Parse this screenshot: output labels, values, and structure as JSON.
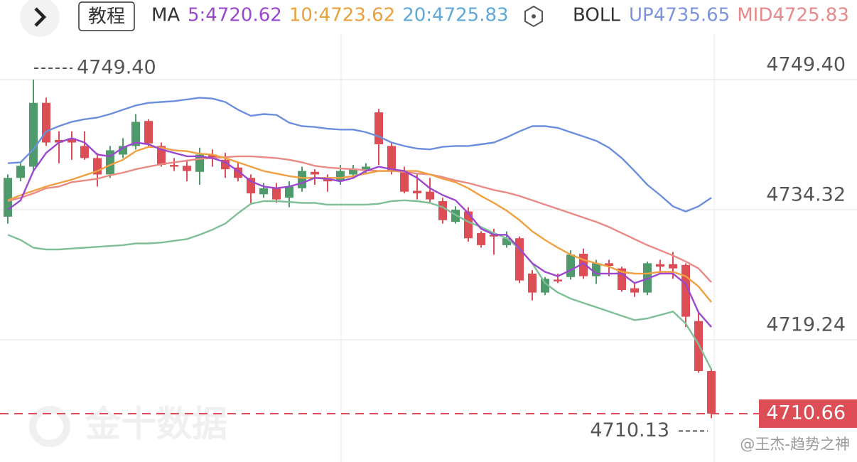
{
  "chart_data": {
    "type": "candlestick",
    "header": {
      "tutorial": "教程",
      "ma_label": "MA",
      "ma": [
        {
          "text": "5:4720.62",
          "color": "#9b47d0"
        },
        {
          "text": "10:4723.62",
          "color": "#e8a13e"
        },
        {
          "text": "20:4725.83",
          "color": "#5fa8d8"
        }
      ],
      "boll_label": "BOLL",
      "boll": [
        {
          "text": "UP4735.65",
          "color": "#7b93dc"
        },
        {
          "text": "MID4725.83",
          "color": "#e8888a"
        }
      ]
    },
    "up_color": "#4f9a6a",
    "down_color": "#dc4d55",
    "open": [
      4733.5,
      4738.0,
      4739.3,
      4746.7,
      4742.4,
      4742.6,
      4741.7,
      4740.3,
      4738.4,
      4740.7,
      4741.7,
      4744.6,
      4741.7,
      4739.5,
      4739.4,
      4738.7,
      4740.7,
      4740.1,
      4739.2,
      4738.0,
      4736.1,
      4736.8,
      4735.7,
      4736.8,
      4738.7,
      4738.0,
      4737.6,
      4738.4,
      4738.8,
      4745.6,
      4741.7,
      4738.8,
      4736.5,
      4736.4,
      4735.3,
      4732.9,
      4734.1,
      4731.6,
      4731.4,
      4730.2,
      4731.0,
      4726.9,
      4724.7,
      4726.2,
      4726.5,
      4729.2,
      4726.6,
      4728.1,
      4727.5,
      4725.2,
      4724.7,
      4728.0,
      4728.0,
      4727.9,
      4721.4,
      4715.6
    ],
    "high": [
      4738.4,
      4739.7,
      4749.4,
      4747.3,
      4743.4,
      4743.4,
      4743.4,
      4740.9,
      4741.7,
      4742.6,
      4745.4,
      4744.8,
      4742.1,
      4740.3,
      4740.1,
      4741.5,
      4741.3,
      4740.9,
      4739.8,
      4738.4,
      4737.4,
      4737.4,
      4737.6,
      4739.3,
      4739.0,
      4738.4,
      4739.5,
      4739.5,
      4739.7,
      4746.0,
      4742.1,
      4739.3,
      4738.4,
      4738.0,
      4735.7,
      4734.7,
      4734.6,
      4731.8,
      4732.1,
      4731.8,
      4731.2,
      4727.3,
      4726.5,
      4726.9,
      4729.6,
      4729.8,
      4728.5,
      4728.5,
      4727.7,
      4725.7,
      4728.3,
      4728.5,
      4729.4,
      4728.1,
      4722.4,
      4715.9
    ],
    "low": [
      4732.7,
      4737.6,
      4738.8,
      4741.7,
      4739.7,
      4740.1,
      4740.1,
      4737.0,
      4738.0,
      4740.3,
      4741.3,
      4741.7,
      4739.3,
      4738.8,
      4737.6,
      4737.2,
      4739.3,
      4738.0,
      4737.6,
      4734.9,
      4735.7,
      4735.1,
      4734.6,
      4736.4,
      4737.2,
      4736.4,
      4737.2,
      4737.9,
      4738.4,
      4739.5,
      4738.4,
      4736.2,
      4735.5,
      4735.1,
      4732.7,
      4732.7,
      4730.6,
      4729.9,
      4729.1,
      4729.9,
      4725.8,
      4723.8,
      4724.4,
      4725.8,
      4726.2,
      4726.3,
      4725.7,
      4726.6,
      4724.8,
      4724.2,
      4724.4,
      4726.9,
      4726.3,
      4720.7,
      4715.4,
      4710.13
    ],
    "close": [
      4738.0,
      4739.4,
      4746.7,
      4742.1,
      4742.1,
      4742.1,
      4740.3,
      4738.4,
      4741.2,
      4741.7,
      4744.5,
      4742.0,
      4739.5,
      4739.3,
      4738.8,
      4740.7,
      4740.3,
      4739.0,
      4738.0,
      4736.2,
      4736.8,
      4735.5,
      4737.0,
      4738.8,
      4738.4,
      4737.6,
      4738.8,
      4739.0,
      4739.3,
      4741.9,
      4738.8,
      4736.4,
      4736.2,
      4735.5,
      4733.1,
      4734.3,
      4731.0,
      4730.2,
      4731.2,
      4731.0,
      4726.1,
      4724.7,
      4726.3,
      4726.0,
      4729.1,
      4726.6,
      4728.1,
      4727.8,
      4725.0,
      4724.7,
      4728.1,
      4727.7,
      4727.5,
      4721.9,
      4715.6,
      4710.66
    ],
    "lines": [
      {
        "color": "#6b8fdc",
        "values": [
          4739.7,
          4739.8,
          4741.3,
          4743.4,
          4744.0,
          4744.5,
          4744.8,
          4745.0,
          4745.4,
          4745.9,
          4746.4,
          4746.7,
          4746.8,
          4746.9,
          4747.1,
          4747.3,
          4747.2,
          4746.8,
          4745.9,
          4745.2,
          4745.4,
          4745.3,
          4744.4,
          4744.0,
          4743.9,
          4743.7,
          4743.6,
          4743.6,
          4743.3,
          4742.8,
          4742.1,
          4741.7,
          4741.4,
          4741.3,
          4741.6,
          4741.7,
          4741.7,
          4741.9,
          4742.1,
          4742.7,
          4743.4,
          4744.0,
          4744.0,
          4743.8,
          4743.3,
          4742.8,
          4742.3,
          4741.5,
          4740.3,
          4738.8,
          4737.2,
          4736.0,
          4734.7,
          4734.1,
          4734.7,
          4735.7
        ]
      },
      {
        "color": "#7fbf98",
        "values": [
          4731.4,
          4730.8,
          4729.9,
          4729.7,
          4729.7,
          4729.8,
          4729.9,
          4730.0,
          4730.1,
          4730.2,
          4730.4,
          4730.4,
          4730.5,
          4730.7,
          4730.9,
          4731.4,
          4732.0,
          4732.7,
          4733.9,
          4735.0,
          4735.3,
          4735.3,
          4735.2,
          4735.1,
          4735.1,
          4734.9,
          4734.9,
          4734.9,
          4734.9,
          4735.0,
          4735.3,
          4735.4,
          4735.3,
          4735.1,
          4734.6,
          4733.7,
          4732.9,
          4732.3,
          4731.6,
          4731.0,
          4729.8,
          4728.1,
          4725.8,
          4724.7,
          4724.0,
          4723.5,
          4723.0,
          4722.5,
          4722.0,
          4721.5,
          4721.7,
          4722.1,
          4722.5,
          4721.1,
          4718.7,
          4715.8
        ]
      },
      {
        "color": "#e98a84",
        "values": [
          4735.3,
          4735.7,
          4736.2,
          4736.8,
          4737.0,
          4737.5,
          4737.7,
          4737.9,
          4738.3,
          4738.6,
          4739.0,
          4739.3,
          4739.6,
          4739.8,
          4740.0,
          4740.2,
          4740.3,
          4740.4,
          4740.5,
          4740.5,
          4740.4,
          4740.3,
          4740.1,
          4739.8,
          4739.4,
          4739.2,
          4739.1,
          4739.0,
          4738.9,
          4738.8,
          4738.8,
          4738.7,
          4738.5,
          4738.4,
          4738.1,
          4737.7,
          4737.4,
          4737.0,
          4736.6,
          4736.3,
          4735.9,
          4735.4,
          4734.9,
          4734.4,
          4733.9,
          4733.4,
          4732.9,
          4732.3,
          4731.6,
          4730.9,
          4730.2,
          4729.6,
          4729.0,
          4728.3,
          4727.5,
          4725.9
        ]
      },
      {
        "color": "#f0a040",
        "values": [
          4735.4,
          4736.0,
          4736.5,
          4737.0,
          4737.4,
          4737.8,
          4738.3,
          4738.8,
          4739.5,
          4740.1,
          4741.1,
          4741.6,
          4741.5,
          4741.2,
          4741.1,
          4740.8,
          4740.7,
          4740.3,
          4739.8,
          4739.3,
          4738.8,
          4738.5,
          4738.2,
          4738.0,
          4738.0,
          4738.0,
          4738.0,
          4738.2,
          4738.5,
          4738.8,
          4738.8,
          4738.8,
          4738.8,
          4738.4,
          4737.9,
          4737.5,
          4736.8,
          4735.9,
          4735.1,
          4734.2,
          4733.1,
          4731.8,
          4730.8,
          4729.9,
          4729.1,
          4728.5,
          4728.1,
          4727.7,
          4727.1,
          4726.9,
          4726.9,
          4727.1,
          4727.1,
          4726.6,
          4725.4,
          4723.6
        ]
      },
      {
        "color": "#9b47d0",
        "values": [
          4734.3,
          4735.4,
          4738.8,
          4740.9,
          4742.1,
          4742.6,
          4742.1,
          4740.7,
          4740.5,
          4741.5,
          4742.1,
          4741.9,
          4741.3,
          4740.9,
          4740.5,
          4740.5,
          4740.3,
          4739.8,
          4738.8,
          4737.6,
          4737.0,
          4736.8,
          4737.0,
          4737.4,
          4738.0,
          4737.9,
          4737.6,
          4738.0,
          4738.8,
          4739.3,
          4739.0,
          4738.8,
          4738.0,
          4736.8,
          4736.0,
          4735.4,
          4733.9,
          4732.1,
          4731.4,
          4731.4,
          4729.8,
          4728.1,
          4727.1,
          4726.6,
          4727.3,
          4728.1,
          4726.9,
          4726.9,
          4726.9,
          4725.8,
          4726.3,
          4726.9,
          4726.9,
          4725.7,
          4722.4,
          4720.7
        ]
      }
    ],
    "ylim": [
      4705.05,
      4758.63
    ],
    "yticks": [
      {
        "value": 4749.4,
        "label": "4749.40"
      },
      4734.32,
      4719.24
    ],
    "grid": true,
    "last_price": 4710.66,
    "last_price_color": "#dc4d55",
    "high_label": {
      "value": 4749.4,
      "label": "4749.40"
    },
    "low_label": 4710.13,
    "watermark": "金十数据",
    "credit": "@王杰-趋势之神"
  }
}
